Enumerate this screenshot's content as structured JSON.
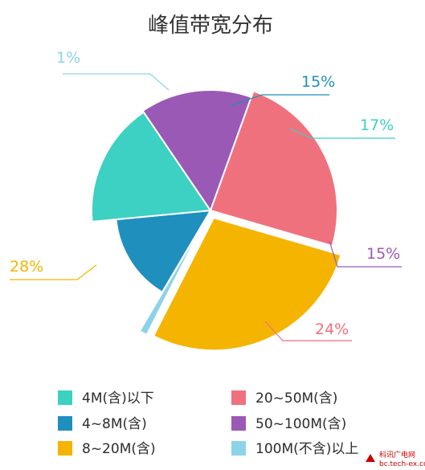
{
  "chart_data": {
    "type": "pie",
    "title": "峰值带宽分布",
    "slices": [
      {
        "label": "1%",
        "legend": "100M(不含)以上",
        "value": 1,
        "color": "#8dd3e8"
      },
      {
        "label": "15%",
        "legend": "4~8M(含)",
        "value": 15,
        "color": "#1f8fbe"
      },
      {
        "label": "17%",
        "legend": "4M(含)以下",
        "value": 17,
        "color": "#3cd1c2"
      },
      {
        "label": "15%",
        "legend": "50~100M(含)",
        "value": 15,
        "color": "#9b59b6"
      },
      {
        "label": "24%",
        "legend": "20~50M(含)",
        "value": 24,
        "color": "#f0717e"
      },
      {
        "label": "28%",
        "legend": "8~20M(含)",
        "value": 28,
        "color": "#f5b400"
      }
    ],
    "legend_order": [
      {
        "name": "4M(含)以下",
        "color": "#3cd1c2"
      },
      {
        "name": "20~50M(含)",
        "color": "#f0717e"
      },
      {
        "name": "4~8M(含)",
        "color": "#1f8fbe"
      },
      {
        "name": "50~100M(含)",
        "color": "#9b59b6"
      },
      {
        "name": "8~20M(含)",
        "color": "#f5b400"
      },
      {
        "name": "100M(不含)以上",
        "color": "#8dd3e8"
      }
    ]
  },
  "watermark": {
    "line1": "科讯广电网",
    "line2": "bc.tech-ex.com"
  }
}
